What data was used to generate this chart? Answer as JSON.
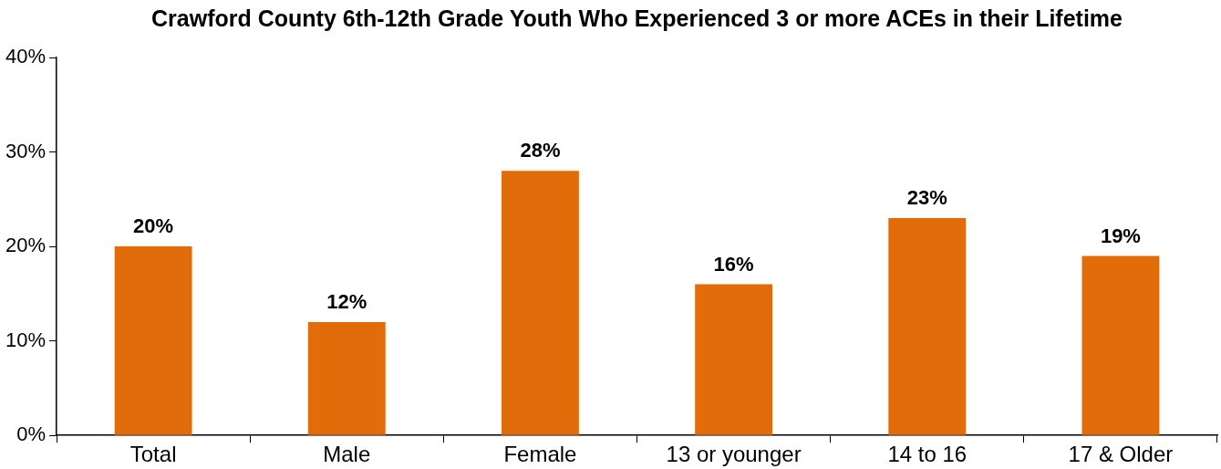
{
  "chart_data": {
    "type": "bar",
    "title": "Crawford County 6th-12th Grade Youth Who Experienced 3 or more ACEs in their Lifetime",
    "categories": [
      "Total",
      "Male",
      "Female",
      "13 or younger",
      "14 to 16",
      "17 & Older"
    ],
    "values": [
      20,
      12,
      28,
      16,
      23,
      19
    ],
    "value_labels": [
      "20%",
      "12%",
      "28%",
      "16%",
      "23%",
      "19%"
    ],
    "color": "#e36c0a",
    "ylim": [
      0,
      40
    ],
    "yticks": [
      {
        "value": 0,
        "label": "0%"
      },
      {
        "value": 10,
        "label": "10%"
      },
      {
        "value": 20,
        "label": "20%"
      },
      {
        "value": 30,
        "label": "30%"
      },
      {
        "value": 40,
        "label": "40%"
      }
    ],
    "grid": false,
    "legend": false
  }
}
